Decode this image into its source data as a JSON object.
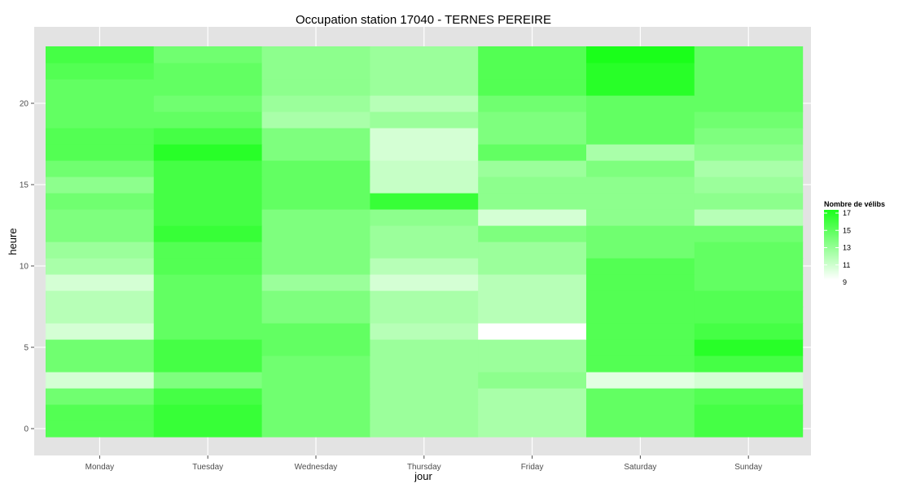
{
  "chart_data": {
    "type": "heatmap",
    "title": "Occupation station 17040 - TERNES PEREIRE",
    "xlabel": "jour",
    "ylabel": "heure",
    "x": [
      "Monday",
      "Tuesday",
      "Wednesday",
      "Thursday",
      "Friday",
      "Saturday",
      "Sunday"
    ],
    "y": [
      0,
      1,
      2,
      3,
      4,
      5,
      6,
      7,
      8,
      9,
      10,
      11,
      12,
      13,
      14,
      15,
      16,
      17,
      18,
      19,
      20,
      21,
      22,
      23
    ],
    "ylim": [
      -0.5,
      23.5
    ],
    "yticks": [
      0,
      5,
      10,
      15,
      20
    ],
    "grid": true,
    "legend": {
      "title": "Nombre de vélibs",
      "placement": "right",
      "min": 9,
      "max": 17,
      "ticks": [
        17,
        15,
        13,
        11,
        9
      ],
      "low_color": "#ffffff",
      "high_color": "#1aff1a"
    },
    "colors": {
      "panel": "#e3e3e3",
      "grid": "#ffffff",
      "tick": "#4d4d4d"
    },
    "values": [
      [
        15.0,
        16.0,
        14.0,
        12.5,
        12.0,
        14.5,
        15.5
      ],
      [
        15.0,
        16.0,
        14.0,
        12.5,
        12.0,
        14.5,
        15.5
      ],
      [
        14.0,
        15.5,
        14.0,
        12.5,
        12.0,
        14.5,
        15.0
      ],
      [
        10.5,
        13.5,
        14.0,
        12.5,
        13.0,
        10.0,
        10.5
      ],
      [
        14.0,
        15.5,
        14.0,
        12.5,
        12.5,
        15.0,
        15.5
      ],
      [
        14.0,
        15.5,
        14.5,
        12.5,
        12.5,
        15.0,
        16.5
      ],
      [
        10.5,
        14.5,
        14.5,
        11.5,
        9.0,
        15.0,
        15.5
      ],
      [
        11.5,
        14.5,
        13.5,
        12.0,
        11.5,
        15.0,
        15.0
      ],
      [
        11.5,
        14.5,
        13.5,
        12.0,
        11.5,
        15.0,
        15.0
      ],
      [
        10.5,
        14.5,
        12.5,
        10.5,
        11.5,
        15.0,
        14.5
      ],
      [
        12.0,
        15.0,
        13.5,
        11.5,
        12.5,
        15.0,
        14.5
      ],
      [
        12.5,
        15.0,
        13.5,
        12.5,
        12.5,
        14.0,
        14.5
      ],
      [
        13.5,
        16.0,
        13.5,
        12.5,
        13.5,
        14.0,
        14.0
      ],
      [
        13.5,
        15.5,
        13.5,
        13.0,
        10.5,
        13.0,
        11.5
      ],
      [
        14.0,
        15.5,
        14.5,
        16.0,
        13.0,
        13.0,
        13.0
      ],
      [
        13.0,
        15.5,
        14.5,
        11.0,
        13.0,
        13.0,
        12.5
      ],
      [
        14.0,
        15.5,
        14.5,
        11.0,
        12.5,
        13.5,
        12.0
      ],
      [
        15.0,
        16.5,
        13.5,
        10.5,
        14.5,
        12.0,
        13.0
      ],
      [
        15.0,
        15.5,
        13.5,
        10.5,
        13.5,
        14.5,
        13.5
      ],
      [
        14.5,
        14.5,
        12.0,
        12.5,
        13.5,
        14.5,
        14.0
      ],
      [
        14.5,
        14.0,
        12.5,
        11.5,
        14.0,
        14.5,
        14.5
      ],
      [
        14.5,
        14.5,
        13.0,
        12.5,
        15.0,
        16.5,
        14.5
      ],
      [
        15.0,
        14.5,
        13.0,
        12.5,
        15.0,
        16.5,
        14.5
      ],
      [
        15.5,
        14.0,
        13.0,
        12.5,
        15.0,
        17.0,
        14.5
      ]
    ]
  }
}
